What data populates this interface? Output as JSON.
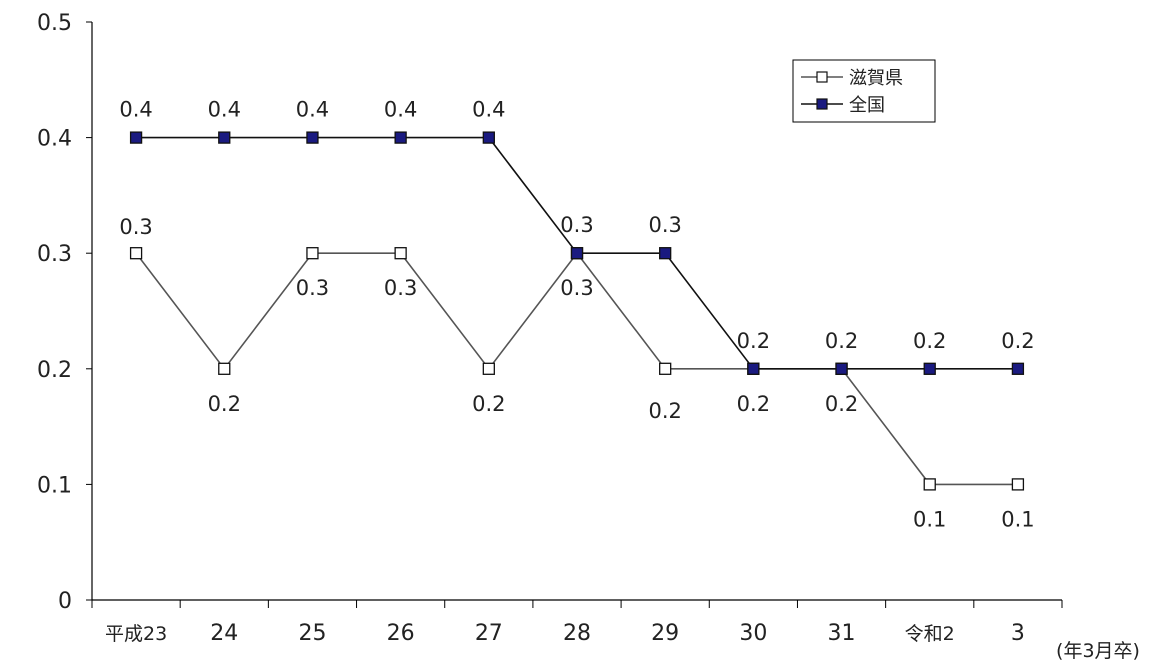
{
  "chart_data": {
    "type": "line",
    "categories": [
      "平成23",
      "24",
      "25",
      "26",
      "27",
      "28",
      "29",
      "30",
      "31",
      "令和2",
      "3"
    ],
    "series": [
      {
        "name": "滋賀県",
        "values": [
          0.3,
          0.2,
          0.3,
          0.3,
          0.2,
          0.3,
          0.2,
          0.2,
          0.2,
          0.1,
          0.1
        ],
        "marker": "open-square",
        "line_color": "#555555",
        "marker_fill": "#ffffff",
        "marker_stroke": "#111111"
      },
      {
        "name": "全国",
        "values": [
          0.4,
          0.4,
          0.4,
          0.4,
          0.4,
          0.3,
          0.3,
          0.2,
          0.2,
          0.2,
          0.2
        ],
        "marker": "filled-square",
        "line_color": "#111111",
        "marker_fill": "#1a1a80",
        "marker_stroke": "#111111"
      }
    ],
    "ylim": [
      0,
      0.5
    ],
    "yticks": [
      "0",
      "0.1",
      "0.2",
      "0.3",
      "0.4",
      "0.5"
    ],
    "x_unit_label": "(年3月卒)",
    "legend_position": "top-right",
    "grid": false
  }
}
